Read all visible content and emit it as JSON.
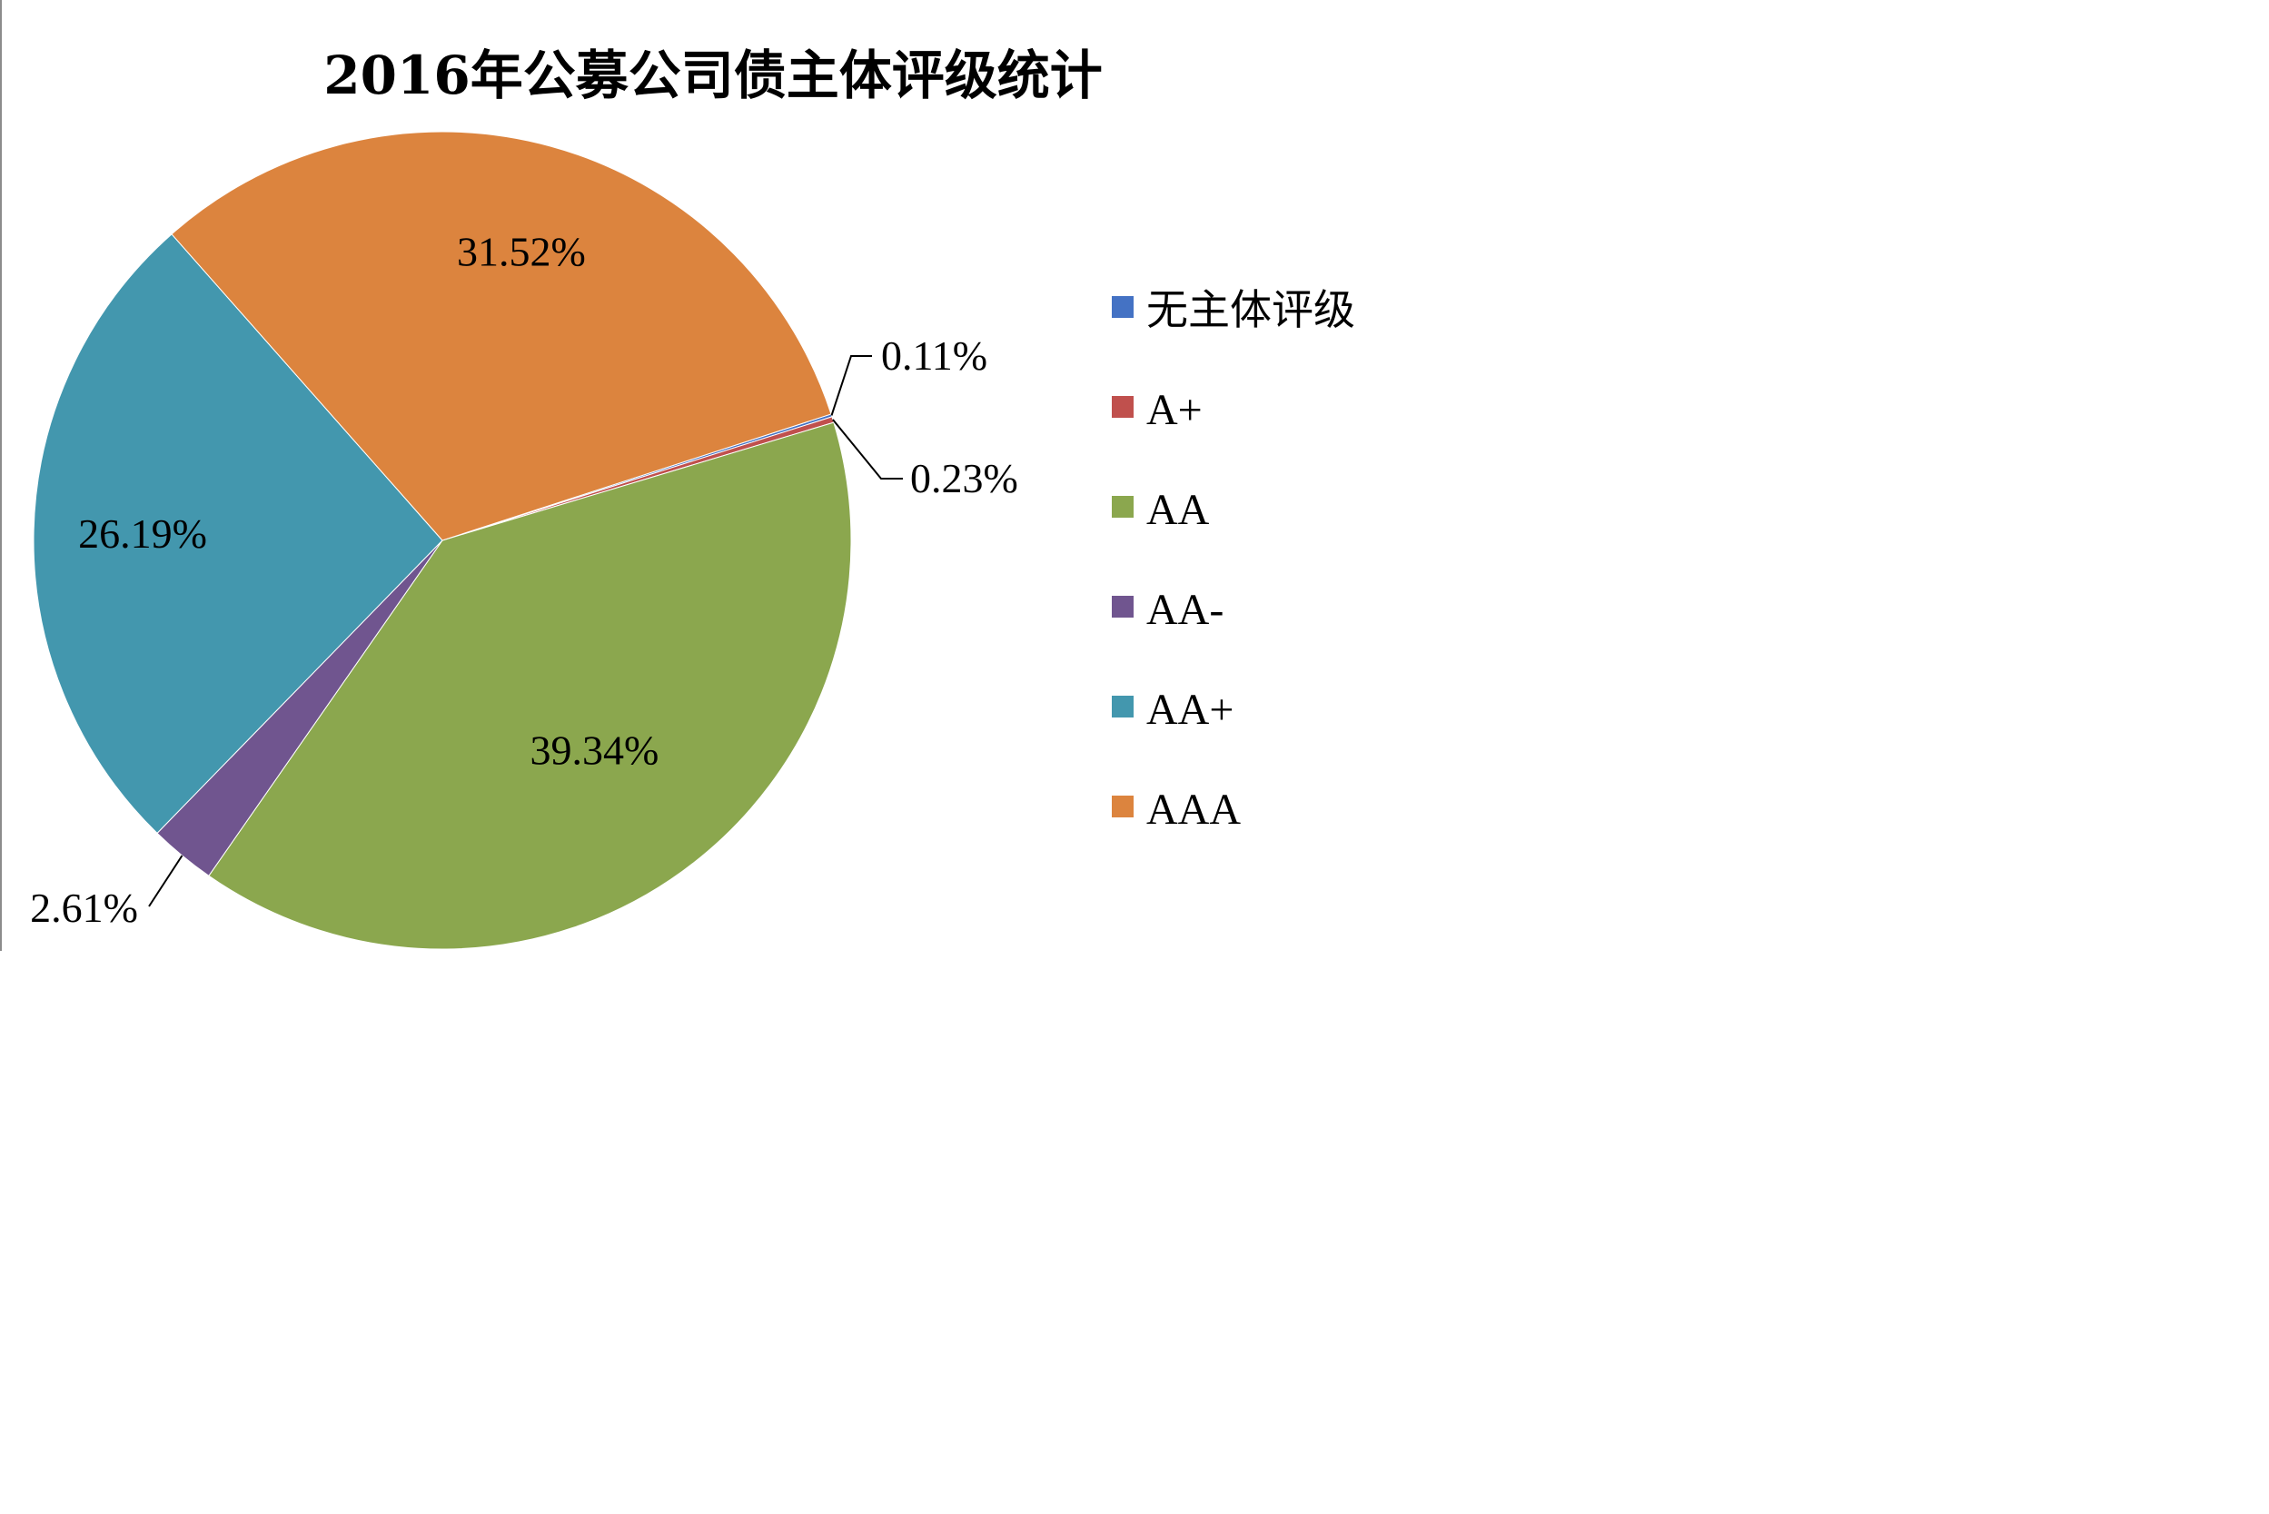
{
  "chart_data": {
    "type": "pie",
    "title": "2016年公募公司债主体评级统计",
    "categories": [
      "无主体评级",
      "A+",
      "AA",
      "AA-",
      "AA+",
      "AAA"
    ],
    "values": [
      0.11,
      0.23,
      39.34,
      2.61,
      26.19,
      31.52
    ],
    "data_labels": [
      "0.11%",
      "0.23%",
      "39.34%",
      "2.61%",
      "26.19%",
      "31.52%"
    ],
    "colors": [
      "#4472C4",
      "#C0504D",
      "#8BA74E",
      "#70558F",
      "#4397AE",
      "#DC843E"
    ],
    "legend_position": "right",
    "start_angle_deg": 18
  }
}
